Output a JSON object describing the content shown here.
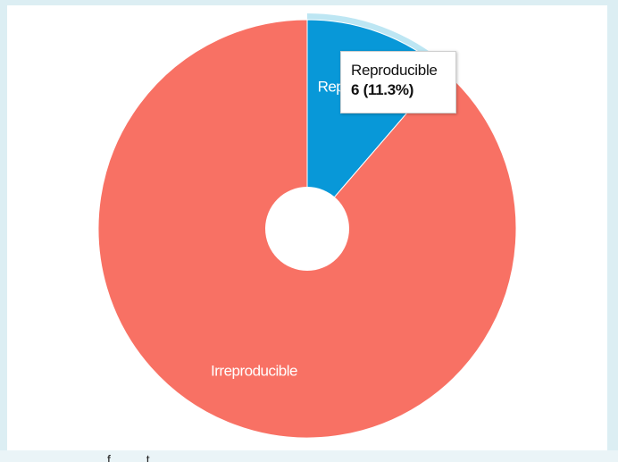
{
  "chart_data": {
    "type": "pie",
    "categories": [
      "Reproducible",
      "Irreproducible"
    ],
    "values": [
      6,
      47
    ],
    "slice_labels": [
      "Reproducible",
      "Irreproducible"
    ],
    "colors": [
      "#0898d8",
      "#f87164"
    ],
    "hover_halo_color": "#bde6f3",
    "donut": true,
    "start_angle_deg": 0
  },
  "tooltip": {
    "name": "Reproducible",
    "value_text": "6 (11.3%)"
  },
  "bottom_strip": {
    "text": "f    t"
  }
}
